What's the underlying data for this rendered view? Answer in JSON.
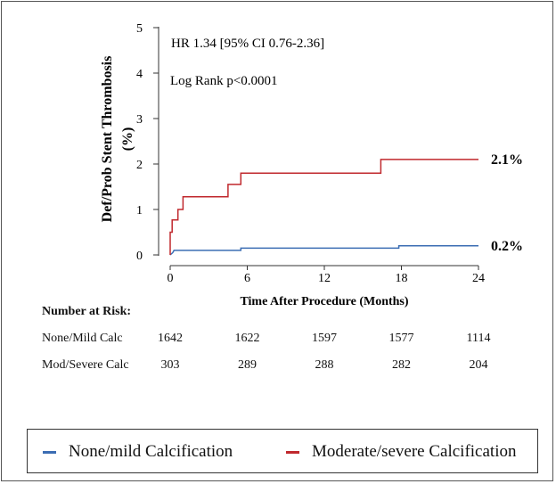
{
  "chart_data": {
    "type": "line",
    "step": true,
    "ylabel": "Def/Prob Stent Thrombosis (%)",
    "xlabel": "Time After Procedure (Months)",
    "xlim": [
      0,
      24
    ],
    "ylim": [
      0,
      5
    ],
    "xticks": [
      0,
      6,
      12,
      18,
      24
    ],
    "yticks": [
      0,
      1,
      2,
      3,
      4,
      5
    ],
    "annotations": [
      "HR 1.34 [95% CI 0.76-2.36]",
      "Log Rank p<0.0001"
    ],
    "series": [
      {
        "name": "None/mild Calcification",
        "color": "#3b6db3",
        "end_label": "0.2%",
        "points": [
          [
            0,
            0
          ],
          [
            0.2,
            0.05
          ],
          [
            0.3,
            0.1
          ],
          [
            5.5,
            0.1
          ],
          [
            5.5,
            0.15
          ],
          [
            17.8,
            0.15
          ],
          [
            17.8,
            0.2
          ],
          [
            24,
            0.2
          ]
        ]
      },
      {
        "name": "Moderate/severe Calcification",
        "color": "#c0282d",
        "end_label": "2.1%",
        "points": [
          [
            0,
            0
          ],
          [
            0,
            0.5
          ],
          [
            0.15,
            0.5
          ],
          [
            0.15,
            0.77
          ],
          [
            0.6,
            0.77
          ],
          [
            0.6,
            1.0
          ],
          [
            1.0,
            1.0
          ],
          [
            1.0,
            1.28
          ],
          [
            4.5,
            1.28
          ],
          [
            4.5,
            1.55
          ],
          [
            5.5,
            1.55
          ],
          [
            5.5,
            1.8
          ],
          [
            16.4,
            1.8
          ],
          [
            16.4,
            2.1
          ],
          [
            24,
            2.1
          ]
        ]
      }
    ]
  },
  "risk_table": {
    "title": "Number at Risk:",
    "rows": [
      {
        "label": "None/Mild Calc",
        "values": [
          1642,
          1622,
          1597,
          1577,
          1114
        ]
      },
      {
        "label": "Mod/Severe Calc",
        "values": [
          303,
          289,
          288,
          282,
          204
        ]
      }
    ]
  },
  "legend": [
    {
      "label": "None/mild Calcification",
      "color": "#3b6db3"
    },
    {
      "label": "Moderate/severe Calcification",
      "color": "#c0282d"
    }
  ]
}
